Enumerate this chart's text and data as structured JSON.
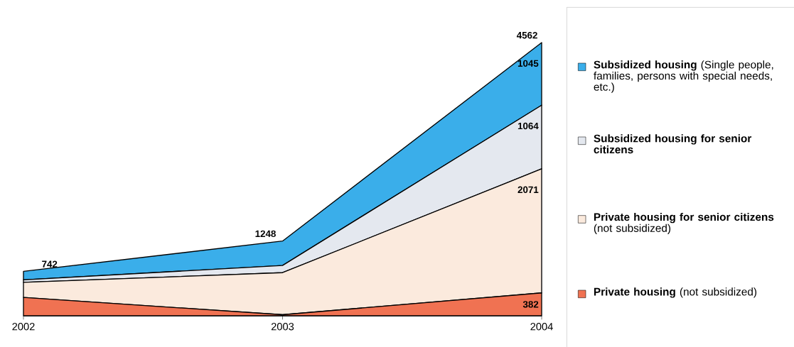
{
  "chart_data": {
    "type": "area",
    "stacked": true,
    "legend": "right",
    "categories": [
      "2002",
      "2003",
      "2004"
    ],
    "series": [
      {
        "name": "**Private housing** (not subsidized)",
        "color": "#f07252",
        "values": [
          306,
          18,
          382
        ],
        "value_labels": [
          null,
          null,
          "382"
        ]
      },
      {
        "name": "**Private housing for senior citizens** (not subsidized)",
        "color": "#fbeadd",
        "values": [
          252,
          702,
          2071
        ],
        "value_labels": [
          null,
          null,
          "2071"
        ]
      },
      {
        "name": "**Subsidized housing for senior citizens**",
        "color": "#e4e8ef",
        "values": [
          41,
          120,
          1064
        ],
        "value_labels": [
          null,
          null,
          "1064"
        ]
      },
      {
        "name": "**Subsidized housing** (Single people, families, persons with special needs, etc.)",
        "color": "#3aaeea",
        "values": [
          143,
          408,
          1045
        ],
        "value_labels": [
          null,
          null,
          "1045"
        ]
      }
    ],
    "totals": [
      "742",
      "1248",
      "4562"
    ]
  }
}
